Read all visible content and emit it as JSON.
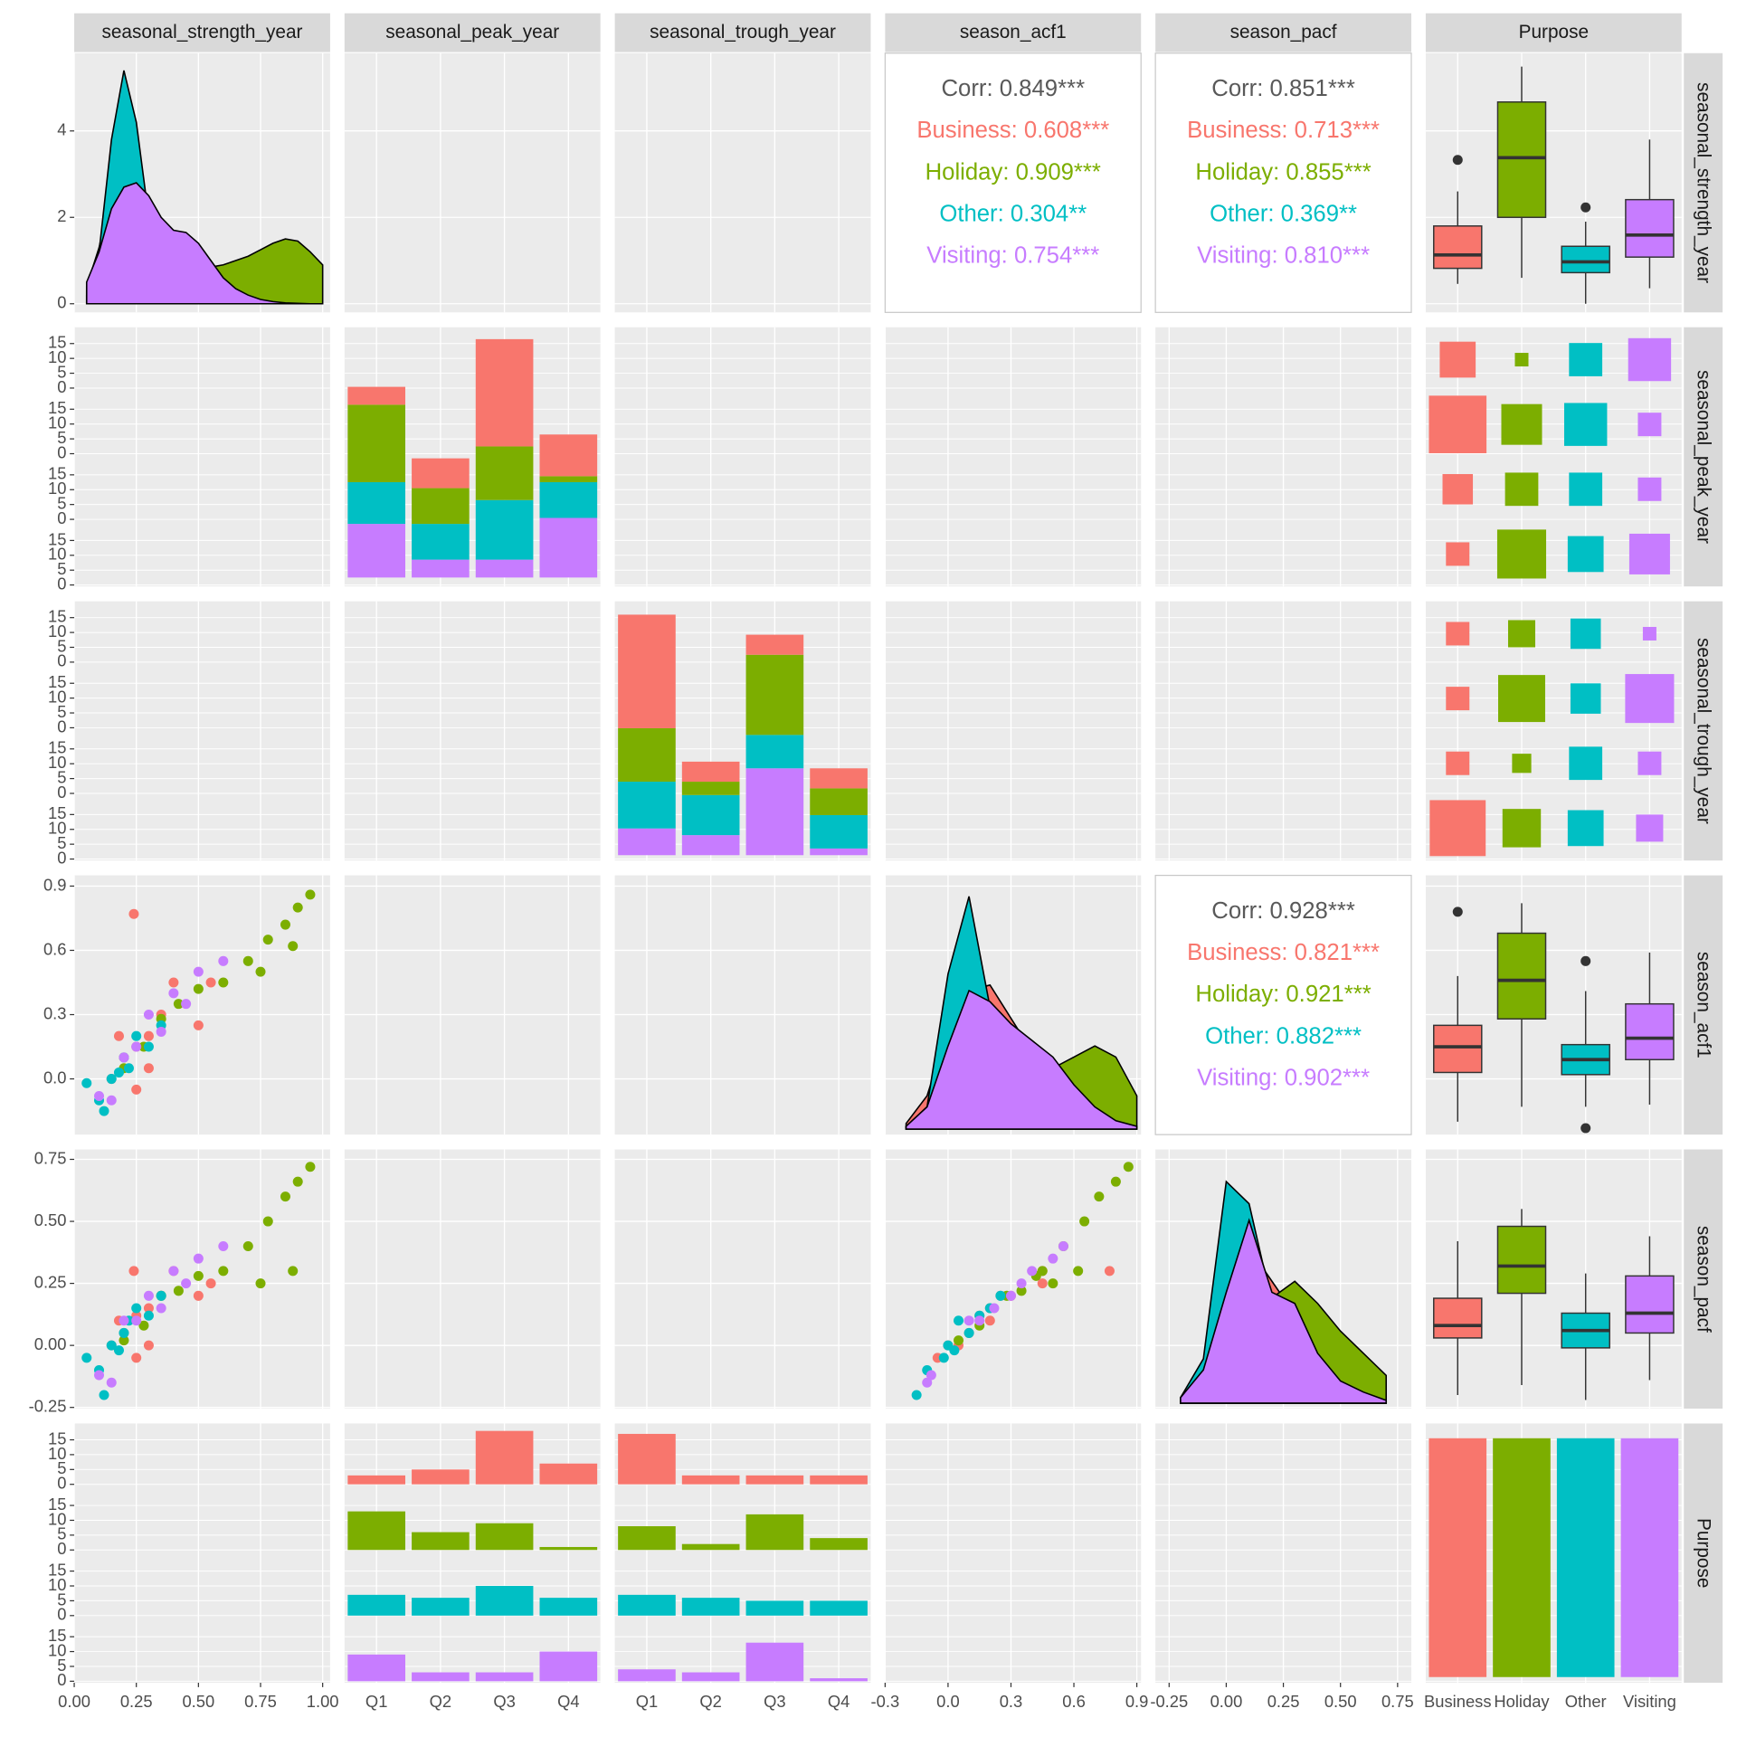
{
  "chart_data": {
    "type": "pairs",
    "variables": [
      "seasonal_strength_year",
      "seasonal_peak_year",
      "seasonal_trough_year",
      "season_acf1",
      "season_pacf",
      "Purpose"
    ],
    "quarters": [
      "Q1",
      "Q2",
      "Q3",
      "Q4"
    ],
    "strength_axis": {
      "xlim": [
        0,
        1.03
      ],
      "xticks": [
        {
          "value": 0,
          "label": "0.00"
        },
        0.25,
        {
          "value": 0.5,
          "label": "0.50"
        },
        0.75,
        {
          "value": 1,
          "label": "1.00"
        }
      ]
    },
    "acf1_axis": {
      "xlim": [
        -0.3,
        0.92
      ],
      "xticks": [
        -0.3,
        {
          "value": 0,
          "label": "0.0"
        },
        0.3,
        0.6,
        0.9
      ],
      "ylim": [
        -0.26,
        0.95
      ],
      "yticks": [
        {
          "value": 0,
          "label": "0.0"
        },
        0.3,
        0.6,
        0.9
      ]
    },
    "pacf_axis": {
      "xlim": [
        -0.31,
        0.81
      ],
      "xticks": [
        -0.25,
        {
          "value": 0,
          "label": "0.00"
        },
        0.25,
        {
          "value": 0.5,
          "label": "0.50"
        },
        0.75
      ],
      "ylim": [
        -0.255,
        0.79
      ],
      "yticks": [
        -0.25,
        {
          "value": 0,
          "label": "0.00"
        },
        0.25,
        {
          "value": 0.5,
          "label": "0.50"
        },
        0.75
      ]
    },
    "density_axis": {
      "ylim": [
        -0.2,
        5.8
      ],
      "yticks": [
        0,
        2,
        4
      ]
    },
    "count_axis": {
      "ylim": [
        -0.5,
        20.5
      ],
      "yticks": [
        0,
        5,
        10,
        15
      ]
    },
    "density_panel_ylim": [
      -0.1,
      4.58
    ],
    "peak_stack_ylim": [
      -1.5,
      42
    ],
    "trough_stack_ylim": [
      -0.8,
      38
    ],
    "purpose_count_ylim": [
      -1.8,
      80.7
    ],
    "density_strength_x": [
      0.05,
      0.1,
      0.15,
      0.2,
      0.25,
      0.3,
      0.35,
      0.4,
      0.45,
      0.5,
      0.55,
      0.6,
      0.65,
      0.7,
      0.75,
      0.8,
      0.85,
      0.9,
      0.95,
      1.0
    ],
    "density_acf1_x": [
      -0.2,
      -0.1,
      0,
      0.1,
      0.2,
      0.3,
      0.4,
      0.5,
      0.6,
      0.7,
      0.8,
      0.9
    ],
    "density_pacf_x": [
      -0.2,
      -0.1,
      0,
      0.1,
      0.2,
      0.3,
      0.4,
      0.5,
      0.6,
      0.7
    ],
    "corr_color": "#595959",
    "corr_strength_acf1": [
      "Corr: 0.849***",
      "Business: 0.608***",
      "Holiday: 0.909***",
      "Other: 0.304**",
      "Visiting: 0.754***"
    ],
    "corr_strength_pacf": [
      "Corr: 0.851***",
      "Business: 0.713***",
      "Holiday: 0.855***",
      "Other: 0.369**",
      "Visiting: 0.810***"
    ],
    "corr_acf1_pacf": [
      "Corr: 0.928***",
      "Business: 0.821***",
      "Holiday: 0.921***",
      "Other: 0.882***",
      "Visiting: 0.902***"
    ],
    "groups": [
      {
        "name": "Business",
        "color": "#F8766D",
        "total": 76,
        "strength": [
          0.15,
          0.2,
          0.25,
          0.3,
          0.35,
          0.4,
          0.25,
          0.18,
          0.5,
          0.24,
          0.55,
          0.3
        ],
        "acf1": [
          0.0,
          0.1,
          0.15,
          0.2,
          0.3,
          0.45,
          -0.05,
          0.2,
          0.25,
          0.77,
          0.45,
          0.05
        ],
        "pacf": [
          0.0,
          0.05,
          0.12,
          0.15,
          0.2,
          0.3,
          -0.05,
          0.1,
          0.2,
          0.3,
          0.25,
          0.0
        ],
        "peak_counts": [
          3,
          5,
          18,
          7
        ],
        "trough_counts": [
          17,
          3,
          3,
          3
        ],
        "density_strength": [
          0.4,
          1.3,
          2.6,
          2.9,
          2.6,
          2.1,
          1.6,
          1.2,
          0.9,
          0.6,
          0.4,
          0.2,
          0.1,
          0,
          0,
          0,
          0,
          0,
          0,
          0
        ],
        "density_acf1": [
          0.1,
          0.6,
          1.8,
          2.5,
          2.6,
          2.0,
          1.4,
          0.9,
          0.5,
          0.3,
          0.1,
          0.05
        ],
        "density_pacf": [
          0.1,
          0.7,
          2.0,
          2.8,
          2.2,
          1.6,
          1.0,
          0.5,
          0.2,
          0.05
        ],
        "box_strength": {
          "low": 0.46,
          "q1": 0.82,
          "median": 1.13,
          "q3": 1.8,
          "high": 2.6,
          "outliers": [
            3.33
          ]
        },
        "box_acf1": {
          "low": -0.2,
          "q1": 0.03,
          "median": 0.15,
          "q3": 0.25,
          "high": 0.48,
          "outliers": [
            0.78
          ]
        },
        "box_pacf": {
          "low": -0.2,
          "q1": 0.03,
          "median": 0.08,
          "q3": 0.19,
          "high": 0.42
        }
      },
      {
        "name": "Holiday",
        "color": "#7CAE00",
        "total": 76,
        "strength": [
          0.95,
          0.9,
          0.85,
          0.78,
          0.7,
          0.6,
          0.5,
          0.42,
          0.35,
          0.28,
          0.2,
          0.88,
          0.75
        ],
        "acf1": [
          0.86,
          0.8,
          0.72,
          0.65,
          0.55,
          0.45,
          0.42,
          0.35,
          0.28,
          0.15,
          0.05,
          0.62,
          0.5
        ],
        "pacf": [
          0.72,
          0.66,
          0.6,
          0.5,
          0.4,
          0.3,
          0.28,
          0.22,
          0.2,
          0.08,
          0.02,
          0.3,
          0.25
        ],
        "peak_counts": [
          13,
          6,
          9,
          1
        ],
        "trough_counts": [
          8,
          2,
          12,
          4
        ],
        "density_strength": [
          0.2,
          0.4,
          0.6,
          0.7,
          0.7,
          0.7,
          0.7,
          0.7,
          0.75,
          0.8,
          0.85,
          0.9,
          1.0,
          1.1,
          1.25,
          1.4,
          1.5,
          1.45,
          1.2,
          0.9
        ],
        "density_acf1": [
          0.05,
          0.2,
          0.5,
          0.8,
          1.0,
          1.0,
          1.0,
          1.1,
          1.3,
          1.5,
          1.3,
          0.6
        ],
        "density_pacf": [
          0.05,
          0.3,
          0.8,
          1.3,
          1.9,
          2.2,
          1.8,
          1.3,
          0.9,
          0.5
        ],
        "box_strength": {
          "low": 0.6,
          "q1": 2.0,
          "median": 3.38,
          "q3": 4.67,
          "high": 5.49
        },
        "box_acf1": {
          "low": -0.13,
          "q1": 0.28,
          "median": 0.46,
          "q3": 0.68,
          "high": 0.82
        },
        "box_pacf": {
          "low": -0.16,
          "q1": 0.21,
          "median": 0.32,
          "q3": 0.48,
          "high": 0.55
        }
      },
      {
        "name": "Other",
        "color": "#00BFC4",
        "total": 76,
        "strength": [
          0.05,
          0.1,
          0.15,
          0.2,
          0.22,
          0.3,
          0.12,
          0.25,
          0.35,
          0.18
        ],
        "acf1": [
          -0.02,
          -0.1,
          0.0,
          0.1,
          0.05,
          0.15,
          -0.15,
          0.2,
          0.25,
          0.03
        ],
        "pacf": [
          -0.05,
          -0.1,
          0.0,
          0.05,
          0.1,
          0.12,
          -0.2,
          0.15,
          0.2,
          -0.02
        ],
        "peak_counts": [
          7,
          6,
          10,
          6
        ],
        "trough_counts": [
          7,
          6,
          5,
          5
        ],
        "density_strength": [
          0.3,
          1.2,
          3.8,
          5.4,
          4.2,
          2.0,
          0.9,
          0.5,
          0.3,
          0.2,
          0.1,
          0.05,
          0,
          0,
          0,
          0,
          0,
          0,
          0,
          0
        ],
        "density_acf1": [
          0.05,
          0.4,
          2.8,
          4.2,
          2.2,
          1.0,
          0.6,
          0.4,
          0.2,
          0.1,
          0.05,
          0
        ],
        "density_pacf": [
          0.1,
          0.8,
          4.0,
          3.6,
          1.8,
          0.9,
          0.5,
          0.3,
          0.15,
          0.05
        ],
        "box_strength": {
          "low": 0,
          "q1": 0.72,
          "median": 0.97,
          "q3": 1.33,
          "high": 1.9,
          "outliers": [
            2.23
          ]
        },
        "box_acf1": {
          "low": -0.13,
          "q1": 0.02,
          "median": 0.09,
          "q3": 0.16,
          "high": 0.41,
          "outliers": [
            0.55,
            -0.23
          ]
        },
        "box_pacf": {
          "low": -0.22,
          "q1": -0.01,
          "median": 0.06,
          "q3": 0.13,
          "high": 0.29
        }
      },
      {
        "name": "Visiting",
        "color": "#C77CFF",
        "total": 76,
        "strength": [
          0.1,
          0.2,
          0.3,
          0.4,
          0.5,
          0.6,
          0.25,
          0.35,
          0.15,
          0.45
        ],
        "acf1": [
          -0.08,
          0.1,
          0.3,
          0.4,
          0.5,
          0.55,
          0.15,
          0.22,
          -0.1,
          0.35
        ],
        "pacf": [
          -0.12,
          0.1,
          0.2,
          0.3,
          0.35,
          0.4,
          0.1,
          0.15,
          -0.15,
          0.25
        ],
        "peak_counts": [
          9,
          3,
          3,
          10
        ],
        "trough_counts": [
          4,
          3,
          13,
          1
        ],
        "density_strength": [
          0.5,
          1.2,
          2.2,
          2.7,
          2.8,
          2.5,
          2.0,
          1.7,
          1.65,
          1.4,
          1.0,
          0.6,
          0.35,
          0.2,
          0.1,
          0.05,
          0.02,
          0.01,
          0,
          0
        ],
        "density_acf1": [
          0.05,
          0.4,
          1.5,
          2.5,
          2.3,
          1.9,
          1.6,
          1.3,
          0.8,
          0.4,
          0.15,
          0.05
        ],
        "density_pacf": [
          0.1,
          0.6,
          2.0,
          3.3,
          2.0,
          1.8,
          0.9,
          0.4,
          0.2,
          0.05
        ],
        "box_strength": {
          "low": 0.36,
          "q1": 1.08,
          "median": 1.59,
          "q3": 2.41,
          "high": 3.8
        },
        "box_acf1": {
          "low": -0.12,
          "q1": 0.09,
          "median": 0.19,
          "q3": 0.35,
          "high": 0.59
        },
        "box_pacf": {
          "low": -0.14,
          "q1": 0.05,
          "median": 0.13,
          "q3": 0.28,
          "high": 0.44
        }
      }
    ]
  }
}
